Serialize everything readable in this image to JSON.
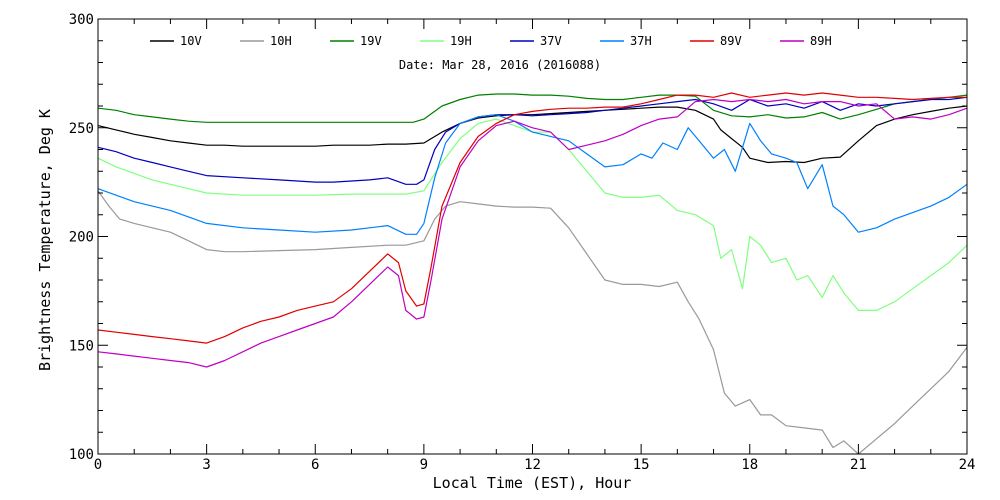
{
  "chart_data": {
    "type": "line",
    "title": "",
    "date_text": "Date: Mar 28, 2016 (2016088)",
    "xlabel": "Local Time (EST), Hour",
    "ylabel": "Brightness Temperature, Deg K",
    "xlim": [
      0,
      24
    ],
    "ylim": [
      100,
      300
    ],
    "xticks": [
      0,
      3,
      6,
      9,
      12,
      15,
      18,
      21,
      24
    ],
    "yticks": [
      100,
      150,
      200,
      250,
      300
    ],
    "xtick_labels": [
      "0",
      "3",
      "6",
      "9",
      "12",
      "15",
      "18",
      "21",
      "24"
    ],
    "ytick_labels": [
      "100",
      "150",
      "200",
      "250",
      "300"
    ],
    "grid": false,
    "legend_position": "top",
    "series": [
      {
        "name": "10V",
        "color": "#000000",
        "x": [
          0,
          0.5,
          1,
          1.5,
          2,
          2.5,
          3,
          3.5,
          4,
          4.5,
          5,
          5.5,
          6,
          6.5,
          7,
          7.5,
          8,
          8.5,
          9,
          9.5,
          10,
          10.5,
          11,
          11.5,
          12,
          12.5,
          13,
          13.5,
          14,
          14.5,
          15,
          15.5,
          16,
          16.5,
          17,
          17.2,
          17.5,
          17.8,
          18,
          18.5,
          19,
          19.5,
          20,
          20.5,
          21,
          21.5,
          22,
          22.5,
          23,
          23.5,
          24
        ],
        "y": [
          251,
          249,
          247,
          245.5,
          244,
          243,
          242,
          242,
          241.5,
          241.5,
          241.5,
          241.5,
          241.5,
          242,
          242,
          242,
          242.5,
          242.5,
          243,
          248,
          252,
          254.5,
          255.5,
          256,
          256,
          256.5,
          257,
          257.5,
          258,
          258.5,
          259,
          259.5,
          259.5,
          258,
          254,
          249,
          245,
          241,
          236,
          234,
          234.5,
          234,
          236,
          236.5,
          244,
          251,
          254,
          256,
          257.5,
          259,
          260
        ]
      },
      {
        "name": "10H",
        "color": "#999999",
        "x": [
          0,
          0.3,
          0.6,
          1,
          1.5,
          2,
          2.5,
          3,
          3.5,
          4,
          5,
          6,
          7,
          8,
          8.5,
          9,
          9.3,
          9.6,
          10,
          10.5,
          11,
          11.5,
          12,
          12.5,
          13,
          13.5,
          14,
          14.5,
          15,
          15.5,
          16,
          16.3,
          16.6,
          17,
          17.3,
          17.6,
          18,
          18.3,
          18.6,
          19,
          19.5,
          20,
          20.3,
          20.6,
          21,
          21.5,
          22,
          22.5,
          23,
          23.5,
          24
        ],
        "y": [
          221,
          214,
          208,
          206,
          204,
          202,
          198,
          194,
          193,
          193,
          193.5,
          194,
          195,
          196,
          196,
          198,
          208,
          214,
          216,
          215,
          214,
          213.5,
          213.5,
          213,
          204,
          192,
          180,
          178,
          178,
          177,
          179,
          170,
          162,
          148,
          128,
          122,
          125,
          118,
          118,
          113,
          112,
          111,
          103,
          106,
          100,
          107,
          114,
          122,
          130,
          138,
          149
        ]
      },
      {
        "name": "19V",
        "color": "#008000",
        "x": [
          0,
          0.5,
          1,
          1.5,
          2,
          2.5,
          3,
          4,
          5,
          6,
          7,
          8,
          8.7,
          9,
          9.5,
          10,
          10.5,
          11,
          11.5,
          12,
          12.5,
          13,
          13.5,
          14,
          14.5,
          15,
          15.5,
          16,
          16.5,
          17,
          17.5,
          18,
          18.5,
          19,
          19.5,
          20,
          20.5,
          21,
          21.5,
          22,
          22.5,
          23,
          23.5,
          24
        ],
        "y": [
          259,
          258,
          256,
          255,
          254,
          253,
          252.5,
          252.5,
          252.5,
          252.5,
          252.5,
          252.5,
          252.5,
          254,
          260,
          263,
          265,
          265.5,
          265.5,
          265,
          265,
          264.5,
          263.5,
          263,
          263,
          264,
          265,
          265,
          264.5,
          258,
          255.5,
          255,
          256,
          254.5,
          255,
          257,
          254,
          256,
          258.5,
          261,
          262,
          263,
          264,
          265
        ]
      },
      {
        "name": "19H",
        "color": "#80ff80",
        "x": [
          0,
          0.5,
          1,
          1.5,
          2,
          2.5,
          3,
          4,
          5,
          6,
          7,
          8,
          8.5,
          9,
          9.5,
          10,
          10.5,
          11,
          11.5,
          12,
          12.5,
          13,
          13.5,
          14,
          14.5,
          15,
          15.5,
          16,
          16.5,
          17,
          17.2,
          17.5,
          17.8,
          18,
          18.3,
          18.6,
          19,
          19.3,
          19.6,
          20,
          20.3,
          20.6,
          21,
          21.5,
          22,
          22.5,
          23,
          23.5,
          24
        ],
        "y": [
          236,
          232,
          229,
          226,
          224,
          222,
          220,
          219,
          219,
          219,
          219.5,
          219.5,
          219.5,
          221,
          234,
          245,
          252,
          254,
          251,
          248,
          248,
          240,
          230,
          220,
          218,
          218,
          219,
          212,
          210,
          205,
          190,
          194,
          176,
          200,
          196,
          188,
          190,
          180,
          182,
          172,
          182,
          174,
          166,
          166,
          170,
          176,
          182,
          188,
          196
        ]
      },
      {
        "name": "37V",
        "color": "#0000c0",
        "x": [
          0,
          0.5,
          1,
          1.5,
          2,
          2.5,
          3,
          4,
          5,
          6,
          6.5,
          7,
          7.5,
          8,
          8.5,
          8.8,
          9,
          9.3,
          9.6,
          10,
          10.5,
          11,
          11.5,
          12,
          12.5,
          13,
          13.5,
          14,
          14.5,
          15,
          15.5,
          16,
          16.5,
          17,
          17.5,
          18,
          18.5,
          19,
          19.5,
          20,
          20.5,
          21,
          21.5,
          22,
          22.5,
          23,
          23.5,
          24
        ],
        "y": [
          241,
          239,
          236,
          234,
          232,
          230,
          228,
          227,
          226,
          225,
          225,
          225.5,
          226,
          227,
          224,
          224,
          226,
          240,
          248,
          252,
          255,
          256,
          256,
          255.5,
          256,
          256.5,
          257,
          258,
          259,
          260,
          261,
          262,
          263,
          261,
          258,
          263,
          260,
          261,
          259,
          262,
          258,
          261,
          260,
          261,
          262,
          263,
          263,
          264
        ]
      },
      {
        "name": "37H",
        "color": "#0080ff",
        "x": [
          0,
          0.5,
          1,
          1.5,
          2,
          2.5,
          3,
          4,
          5,
          6,
          7,
          7.5,
          8,
          8.5,
          8.8,
          9,
          9.3,
          9.6,
          10,
          10.5,
          11,
          11.5,
          12,
          12.5,
          13,
          13.5,
          14,
          14.5,
          15,
          15.3,
          15.6,
          16,
          16.3,
          16.6,
          17,
          17.3,
          17.6,
          18,
          18.3,
          18.6,
          19,
          19.3,
          19.6,
          20,
          20.3,
          20.6,
          21,
          21.5,
          22,
          22.5,
          23,
          23.5,
          24
        ],
        "y": [
          222,
          219,
          216,
          214,
          212,
          209,
          206,
          204,
          203,
          202,
          203,
          204,
          205,
          201,
          201,
          206,
          227,
          243,
          252,
          255,
          256,
          253,
          248,
          246,
          244,
          238,
          232,
          233,
          238,
          236,
          243,
          240,
          250,
          244,
          236,
          240,
          230,
          252,
          244,
          238,
          236,
          234,
          222,
          233,
          214,
          210,
          202,
          204,
          208,
          211,
          214,
          218,
          224
        ]
      },
      {
        "name": "89V",
        "color": "#e00000",
        "x": [
          0,
          0.5,
          1,
          1.5,
          2,
          2.5,
          3,
          3.5,
          4,
          4.5,
          5,
          5.5,
          6,
          6.5,
          7,
          7.5,
          8,
          8.3,
          8.5,
          8.8,
          9,
          9.2,
          9.5,
          10,
          10.5,
          11,
          11.5,
          12,
          12.5,
          13,
          13.5,
          14,
          14.5,
          15,
          15.5,
          16,
          16.5,
          17,
          17.5,
          18,
          18.5,
          19,
          19.5,
          20,
          20.5,
          21,
          21.5,
          22,
          22.5,
          23,
          23.5,
          24
        ],
        "y": [
          157,
          156,
          155,
          154,
          153,
          152,
          151,
          154,
          158,
          161,
          163,
          166,
          168,
          170,
          176,
          184,
          192,
          188,
          175,
          168,
          169,
          186,
          214,
          234,
          246,
          252,
          256,
          257.5,
          258.5,
          259,
          259,
          259.5,
          259.5,
          261,
          263,
          265,
          265,
          264,
          266,
          264,
          265,
          266,
          265,
          266,
          265,
          264,
          264,
          263.5,
          263,
          263.5,
          264,
          264
        ]
      },
      {
        "name": "89H",
        "color": "#c000c0",
        "x": [
          0,
          0.5,
          1,
          1.5,
          2,
          2.5,
          3,
          3.5,
          4,
          4.5,
          5,
          5.5,
          6,
          6.5,
          7,
          7.5,
          8,
          8.3,
          8.5,
          8.8,
          9,
          9.2,
          9.5,
          10,
          10.5,
          11,
          11.5,
          12,
          12.5,
          13,
          13.5,
          14,
          14.5,
          15,
          15.5,
          16,
          16.5,
          17,
          17.5,
          18,
          18.5,
          19,
          19.5,
          20,
          20.5,
          21,
          21.5,
          22,
          22.5,
          23,
          23.5,
          24
        ],
        "y": [
          147,
          146,
          145,
          144,
          143,
          142,
          140,
          143,
          147,
          151,
          154,
          157,
          160,
          163,
          170,
          178,
          186,
          182,
          166,
          162,
          163,
          180,
          208,
          232,
          244,
          251,
          253,
          250,
          248,
          240,
          242,
          244,
          247,
          251,
          254,
          255,
          262,
          263,
          262,
          263,
          262,
          263,
          261,
          262,
          262,
          260,
          261,
          254,
          255,
          254,
          256,
          259
        ]
      }
    ]
  }
}
